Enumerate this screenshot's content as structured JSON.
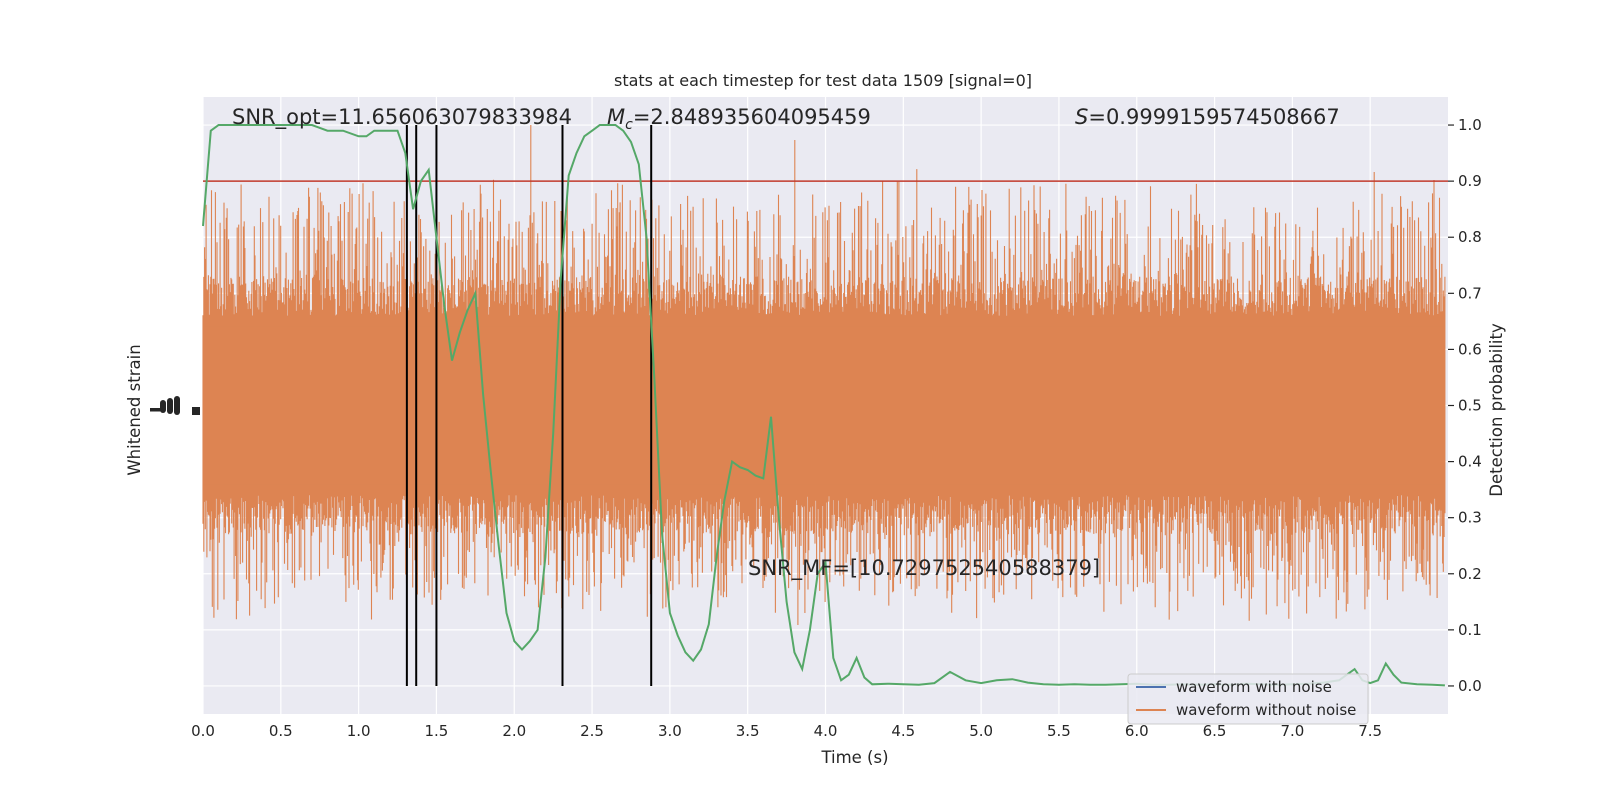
{
  "chart_data": {
    "type": "line",
    "title": "stats at each timestep for test data 1509 [signal=0]",
    "xlabel": "Time (s)",
    "ylabel_left": "Whitened strain",
    "ylabel_right": "Detection probability",
    "xlim": [
      0.0,
      8.0
    ],
    "ylim_right": [
      -0.05,
      1.05
    ],
    "x_ticks": [
      0.0,
      0.5,
      1.0,
      1.5,
      2.0,
      2.5,
      3.0,
      3.5,
      4.0,
      4.5,
      5.0,
      5.5,
      6.0,
      6.5,
      7.0,
      7.5
    ],
    "x_tick_labels": [
      "0.0",
      "0.5",
      "1.0",
      "1.5",
      "2.0",
      "2.5",
      "3.0",
      "3.5",
      "4.0",
      "4.5",
      "5.0",
      "5.5",
      "6.0",
      "6.5",
      "7.0",
      "7.5"
    ],
    "y_ticks_right": [
      0.0,
      0.1,
      0.2,
      0.3,
      0.4,
      0.5,
      0.6,
      0.7,
      0.8,
      0.9,
      1.0
    ],
    "y_tick_labels_right": [
      "0.0",
      "0.1",
      "0.2",
      "0.3",
      "0.4",
      "0.5",
      "0.6",
      "0.7",
      "0.8",
      "0.9",
      "1.0"
    ],
    "grid": true,
    "legend_position": "bottom-right",
    "annotations": {
      "snr_opt": "SNR_opt=11.656063079833984",
      "mc_symbol": "M",
      "mc_sub": "c",
      "mc_value": "=2.848935604095459",
      "s_symbol": "S",
      "s_value": "=0.9999159574508667",
      "snr_mf": "SNR_MF=[10.729752540588379]"
    },
    "threshold": {
      "value": 0.9,
      "color": "#c0392b"
    },
    "vertical_lines_x": [
      1.31,
      1.37,
      1.5,
      2.31,
      2.88
    ],
    "series": [
      {
        "name": "waveform with noise",
        "color": "#4c72b0",
        "x": [],
        "y": []
      },
      {
        "name": "waveform without noise",
        "color": "#dd8452",
        "note_band": "dense noise band",
        "band_center_prob": 0.5,
        "band_core_half_width": 0.14,
        "band_spike_max_prob": 1.0,
        "band_spike_min_prob": 0.0
      },
      {
        "name": "",
        "color": "#55a868",
        "x": [
          0.0,
          0.05,
          0.1,
          0.2,
          0.3,
          0.4,
          0.5,
          0.6,
          0.7,
          0.8,
          0.9,
          1.0,
          1.05,
          1.1,
          1.15,
          1.2,
          1.25,
          1.3,
          1.35,
          1.4,
          1.45,
          1.5,
          1.55,
          1.6,
          1.65,
          1.7,
          1.75,
          1.8,
          1.85,
          1.9,
          1.95,
          2.0,
          2.05,
          2.1,
          2.15,
          2.2,
          2.25,
          2.3,
          2.35,
          2.4,
          2.45,
          2.5,
          2.55,
          2.6,
          2.65,
          2.7,
          2.75,
          2.8,
          2.85,
          2.9,
          2.95,
          3.0,
          3.05,
          3.1,
          3.15,
          3.2,
          3.25,
          3.3,
          3.35,
          3.4,
          3.45,
          3.5,
          3.55,
          3.6,
          3.65,
          3.7,
          3.75,
          3.8,
          3.85,
          3.9,
          3.95,
          4.0,
          4.05,
          4.1,
          4.15,
          4.2,
          4.25,
          4.3,
          4.4,
          4.5,
          4.6,
          4.7,
          4.8,
          4.9,
          5.0,
          5.1,
          5.2,
          5.3,
          5.4,
          5.5,
          5.6,
          5.7,
          5.8,
          5.9,
          6.0,
          6.1,
          6.2,
          6.3,
          6.4,
          6.5,
          6.6,
          6.7,
          6.8,
          6.9,
          7.0,
          7.1,
          7.2,
          7.3,
          7.35,
          7.4,
          7.45,
          7.5,
          7.55,
          7.6,
          7.65,
          7.7,
          7.8,
          7.9,
          7.98
        ],
        "y": [
          0.82,
          0.99,
          1.0,
          1.0,
          1.0,
          1.0,
          1.0,
          1.0,
          1.0,
          0.99,
          0.99,
          0.98,
          0.98,
          0.99,
          0.99,
          0.99,
          0.99,
          0.95,
          0.85,
          0.9,
          0.92,
          0.8,
          0.68,
          0.58,
          0.63,
          0.67,
          0.7,
          0.52,
          0.38,
          0.25,
          0.13,
          0.08,
          0.065,
          0.08,
          0.1,
          0.23,
          0.45,
          0.73,
          0.91,
          0.95,
          0.98,
          0.99,
          1.0,
          1.0,
          1.0,
          0.99,
          0.97,
          0.93,
          0.8,
          0.55,
          0.27,
          0.13,
          0.09,
          0.06,
          0.045,
          0.065,
          0.11,
          0.23,
          0.33,
          0.4,
          0.39,
          0.385,
          0.375,
          0.37,
          0.48,
          0.3,
          0.15,
          0.06,
          0.03,
          0.1,
          0.2,
          0.22,
          0.05,
          0.01,
          0.02,
          0.05,
          0.015,
          0.003,
          0.004,
          0.003,
          0.002,
          0.005,
          0.025,
          0.01,
          0.005,
          0.01,
          0.012,
          0.006,
          0.003,
          0.002,
          0.003,
          0.002,
          0.002,
          0.003,
          0.004,
          0.002,
          0.002,
          0.003,
          0.002,
          0.003,
          0.002,
          0.004,
          0.003,
          0.002,
          0.003,
          0.004,
          0.006,
          0.01,
          0.02,
          0.03,
          0.01,
          0.005,
          0.01,
          0.04,
          0.02,
          0.006,
          0.003,
          0.002,
          0.001
        ]
      }
    ]
  }
}
